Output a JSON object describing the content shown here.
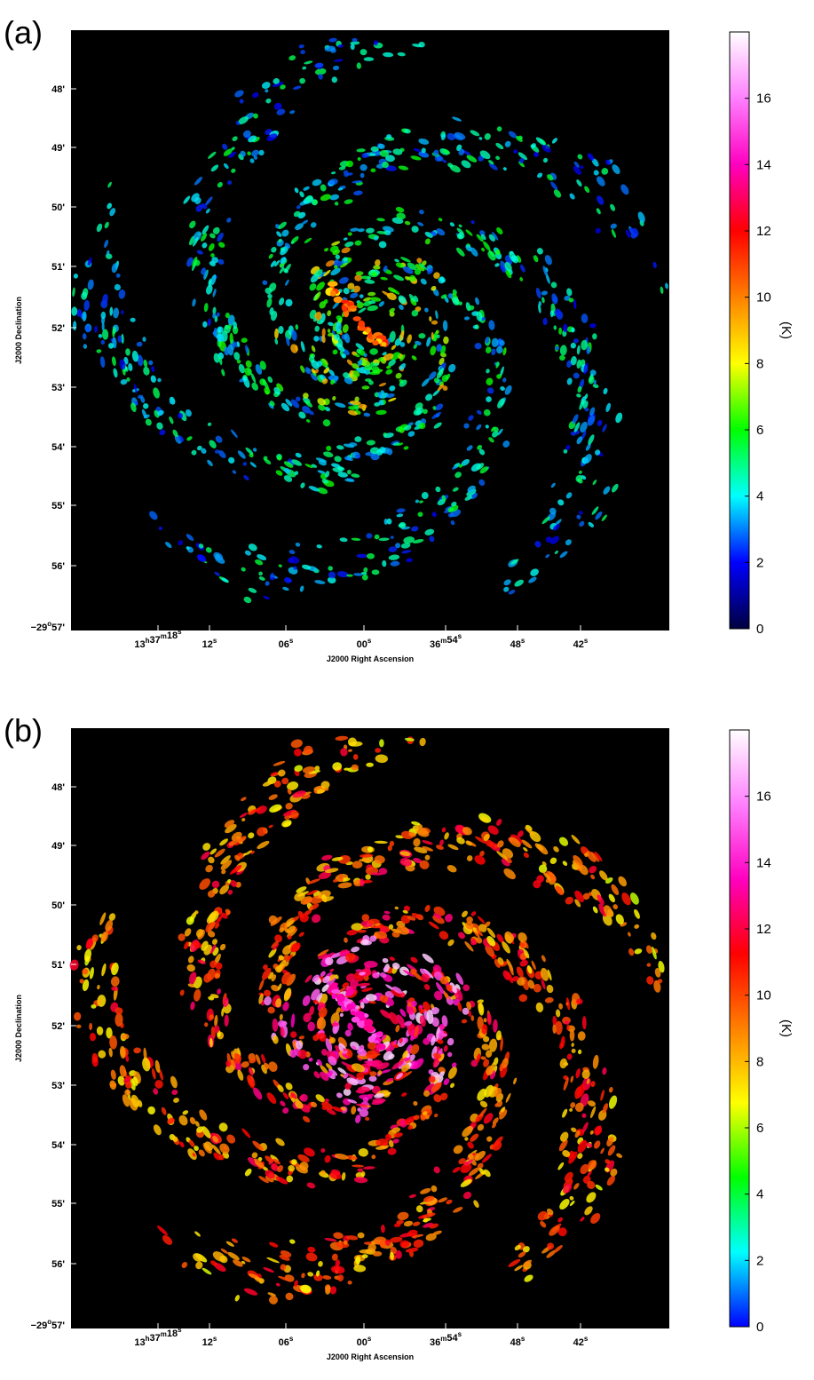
{
  "panels": [
    {
      "label": "(a)",
      "xlabel": "J2000 Right Ascension",
      "ylabel": "J2000 Declination",
      "colorbar_label": "(K)",
      "style": "sparse"
    },
    {
      "label": "(b)",
      "xlabel": "J2000 Right Ascension",
      "ylabel": "J2000 Declination",
      "colorbar_label": "(K)",
      "style": "dense"
    }
  ],
  "chart_data": [
    {
      "type": "heatmap",
      "title": "",
      "panel_label": "(a)",
      "xlabel": "J2000 Right Ascension",
      "ylabel": "J2000 Declination",
      "x_ticks": [
        {
          "h": "13",
          "m": "37",
          "s": "18"
        },
        {
          "s": "12"
        },
        {
          "s": "06"
        },
        {
          "s": "00"
        },
        {
          "m": "36",
          "s": "54"
        },
        {
          "s": "48"
        },
        {
          "s": "42"
        }
      ],
      "y_ticks": [
        "48'",
        "49'",
        "50'",
        "51'",
        "52'",
        "53'",
        "54'",
        "55'",
        "56'"
      ],
      "y_origin_tick": {
        "deg": "−29",
        "min": "57'"
      },
      "colorbar": {
        "label": "(K)",
        "range": [
          0,
          18
        ],
        "ticks": [
          0,
          2,
          4,
          6,
          8,
          10,
          12,
          14,
          16
        ],
        "colormap": [
          "#000040",
          "#0000ff",
          "#00ffff",
          "#00ff00",
          "#ffff00",
          "#ff8000",
          "#ff0000",
          "#ff00c0",
          "#ff80ff",
          "#ffffff"
        ]
      },
      "background_color": "#000000"
    },
    {
      "type": "heatmap",
      "title": "",
      "panel_label": "(b)",
      "xlabel": "J2000 Right Ascension",
      "ylabel": "J2000 Declination",
      "x_ticks": [
        {
          "h": "13",
          "m": "37",
          "s": "18"
        },
        {
          "s": "12"
        },
        {
          "s": "06"
        },
        {
          "s": "00"
        },
        {
          "m": "36",
          "s": "54"
        },
        {
          "s": "48"
        },
        {
          "s": "42"
        }
      ],
      "y_ticks": [
        "48'",
        "49'",
        "50'",
        "51'",
        "52'",
        "53'",
        "54'",
        "55'",
        "56'"
      ],
      "y_origin_tick": {
        "deg": "−29",
        "min": "57'"
      },
      "colorbar": {
        "label": "(K)",
        "range": [
          0,
          18
        ],
        "ticks": [
          0,
          2,
          4,
          6,
          8,
          10,
          12,
          14,
          16
        ],
        "colormap": [
          "#0000ff",
          "#00ffff",
          "#00ff00",
          "#ffff00",
          "#ff8000",
          "#ff0000",
          "#ff00c0",
          "#ff80ff",
          "#ffffff"
        ]
      },
      "background_color": "#000000"
    }
  ]
}
